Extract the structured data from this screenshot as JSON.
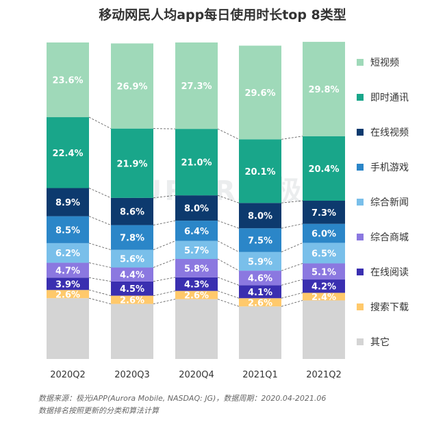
{
  "chart_data": {
    "type": "bar",
    "stacked": true,
    "percent": true,
    "title": "移动网民人均app每日使用时长top 8类型",
    "categories": [
      "2020Q2",
      "2020Q3",
      "2020Q4",
      "2021Q1",
      "2021Q2"
    ],
    "ylim": [
      0,
      100
    ],
    "legend_position": "right",
    "series": [
      {
        "name": "其它",
        "color": "#d4d4d4",
        "values": [
          19.2,
          17.4,
          18.9,
          16.6,
          18.5
        ],
        "labels": [
          "",
          "",
          "",
          "",
          ""
        ]
      },
      {
        "name": "搜索下载",
        "color": "#ffc96b",
        "values": [
          2.6,
          2.6,
          2.6,
          2.6,
          2.4
        ],
        "labels": [
          "2.6%",
          "2.6%",
          "2.6%",
          "2.6%",
          "2.4%"
        ]
      },
      {
        "name": "在线阅读",
        "color": "#3a2fb0",
        "values": [
          3.9,
          4.5,
          4.3,
          4.1,
          4.2
        ],
        "labels": [
          "3.9%",
          "4.5%",
          "4.3%",
          "4.1%",
          "4.2%"
        ]
      },
      {
        "name": "综合商城",
        "color": "#8b78e0",
        "values": [
          4.7,
          4.4,
          5.8,
          4.6,
          5.1
        ],
        "labels": [
          "4.7%",
          "4.4%",
          "5.8%",
          "4.6%",
          "5.1%"
        ]
      },
      {
        "name": "综合新闻",
        "color": "#79bfea",
        "values": [
          6.2,
          5.6,
          5.7,
          5.9,
          6.5
        ],
        "labels": [
          "6.2%",
          "5.6%",
          "5.7%",
          "5.9%",
          "6.5%"
        ]
      },
      {
        "name": "手机游戏",
        "color": "#2b86c8",
        "values": [
          8.5,
          7.8,
          6.4,
          7.5,
          6.0
        ],
        "labels": [
          "8.5%",
          "7.8%",
          "6.4%",
          "7.5%",
          "6.0%"
        ]
      },
      {
        "name": "在线视频",
        "color": "#0d3a6e",
        "values": [
          8.9,
          8.6,
          8.0,
          8.0,
          7.3
        ],
        "labels": [
          "8.9%",
          "8.6%",
          "8.0%",
          "8.0%",
          "7.3%"
        ]
      },
      {
        "name": "即时通讯",
        "color": "#19a68a",
        "values": [
          22.4,
          21.9,
          21.0,
          20.1,
          20.4
        ],
        "labels": [
          "22.4%",
          "21.9%",
          "21.0%",
          "20.1%",
          "20.4%"
        ]
      },
      {
        "name": "短视频",
        "color": "#9fd9b9",
        "values": [
          23.6,
          26.9,
          27.3,
          29.6,
          29.8
        ],
        "labels": [
          "23.6%",
          "26.9%",
          "27.3%",
          "29.6%",
          "29.8%"
        ]
      }
    ],
    "legend_order": [
      "短视频",
      "即时通讯",
      "在线视频",
      "手机游戏",
      "综合新闻",
      "综合商城",
      "在线阅读",
      "搜索下载",
      "其它"
    ]
  },
  "watermark": "AURORA 极光",
  "footnote": {
    "line1": "数据来源：极光iAPP(Aurora Mobile, NASDAQ: JG)，数据周期：2020.04-2021.06",
    "line2": "数据排名按照更新的分类和算法计算"
  }
}
